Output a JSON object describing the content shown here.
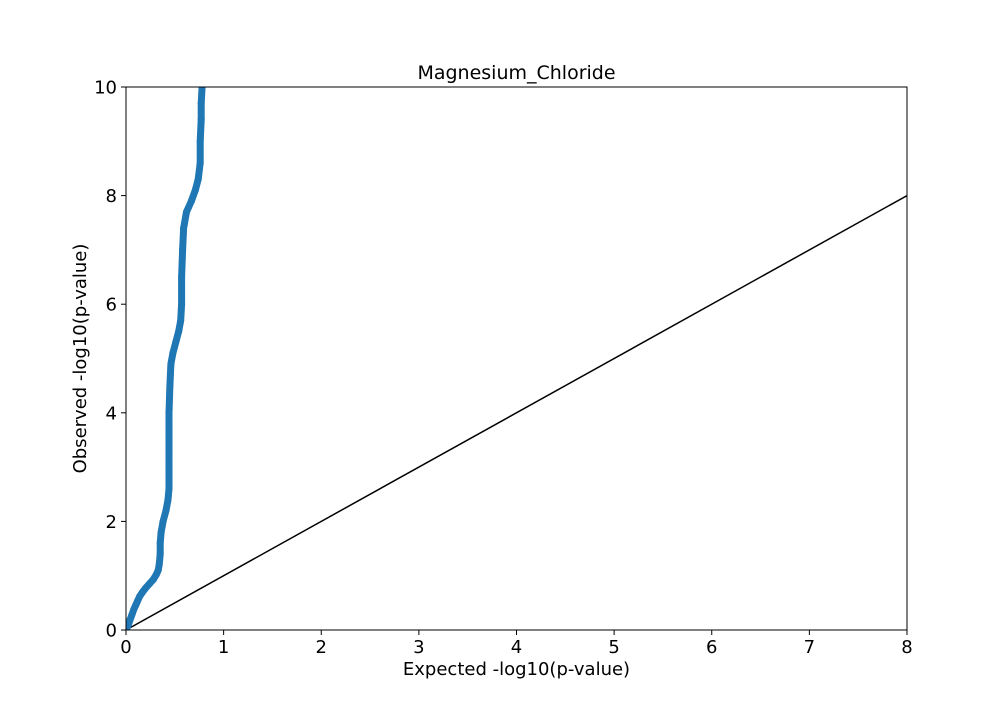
{
  "chart_data": {
    "type": "scatter",
    "title": "Magnesium_Chloride",
    "xlabel": "Expected -log10(p-value)",
    "ylabel": "Observed -log10(p-value)",
    "xlim": [
      0,
      8
    ],
    "ylim": [
      0,
      10
    ],
    "xticks": [
      0,
      1,
      2,
      3,
      4,
      5,
      6,
      7,
      8
    ],
    "yticks": [
      0,
      2,
      4,
      6,
      8,
      10
    ],
    "grid": false,
    "legend": "none",
    "colors": {
      "points": "#1f77b4",
      "reference_line": "#000000"
    },
    "series": [
      {
        "kind": "qq-points",
        "points": [
          [
            0.0,
            0.0
          ],
          [
            0.02,
            0.08
          ],
          [
            0.04,
            0.18
          ],
          [
            0.06,
            0.28
          ],
          [
            0.08,
            0.38
          ],
          [
            0.1,
            0.46
          ],
          [
            0.12,
            0.54
          ],
          [
            0.14,
            0.62
          ],
          [
            0.17,
            0.7
          ],
          [
            0.2,
            0.77
          ],
          [
            0.24,
            0.85
          ],
          [
            0.28,
            0.93
          ],
          [
            0.31,
            1.02
          ],
          [
            0.33,
            1.1
          ],
          [
            0.34,
            1.2
          ],
          [
            0.35,
            1.4
          ],
          [
            0.35,
            1.6
          ],
          [
            0.36,
            1.8
          ],
          [
            0.38,
            2.0
          ],
          [
            0.41,
            2.2
          ],
          [
            0.43,
            2.4
          ],
          [
            0.44,
            2.6
          ],
          [
            0.44,
            3.0
          ],
          [
            0.44,
            3.5
          ],
          [
            0.44,
            4.0
          ],
          [
            0.45,
            4.5
          ],
          [
            0.46,
            4.9
          ],
          [
            0.48,
            5.1
          ],
          [
            0.51,
            5.3
          ],
          [
            0.54,
            5.5
          ],
          [
            0.56,
            5.7
          ],
          [
            0.57,
            6.0
          ],
          [
            0.57,
            6.5
          ],
          [
            0.58,
            7.0
          ],
          [
            0.59,
            7.4
          ],
          [
            0.62,
            7.7
          ],
          [
            0.67,
            7.9
          ],
          [
            0.71,
            8.1
          ],
          [
            0.74,
            8.3
          ],
          [
            0.76,
            8.6
          ],
          [
            0.76,
            9.0
          ],
          [
            0.77,
            9.4
          ],
          [
            0.77,
            9.7
          ],
          [
            0.78,
            10.0
          ]
        ]
      },
      {
        "kind": "reference-line",
        "points": [
          [
            0,
            0
          ],
          [
            8,
            8
          ]
        ]
      }
    ]
  }
}
